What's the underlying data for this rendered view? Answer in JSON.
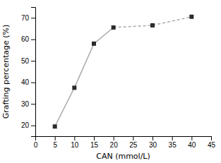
{
  "chart_data": {
    "type": "line",
    "x": [
      5,
      10,
      15,
      20,
      30,
      40
    ],
    "xlabel": "CAN (mmol/L)",
    "ylabel": "Grafting percentage (%)",
    "xlim": [
      0,
      45
    ],
    "ylim": [
      15,
      75
    ],
    "xticks": [
      0,
      5,
      10,
      15,
      20,
      25,
      30,
      35,
      40,
      45
    ],
    "yticks": [
      20,
      30,
      40,
      50,
      60,
      70
    ],
    "grid": false,
    "series": [
      {
        "type": "line",
        "line_style": "solid",
        "color": "#aaaaaa",
        "values": [
          19.5,
          37.5,
          58.0,
          65.5,
          null,
          null
        ]
      },
      {
        "type": "line",
        "line_style": "dashed",
        "color": "#aaaaaa",
        "values": [
          null,
          null,
          null,
          65.5,
          66.5,
          70.5
        ]
      },
      {
        "type": "scatter",
        "marker": "square",
        "color": "#2b2b2b",
        "values": [
          19.5,
          37.5,
          58.0,
          65.5,
          66.5,
          70.5
        ]
      }
    ]
  }
}
